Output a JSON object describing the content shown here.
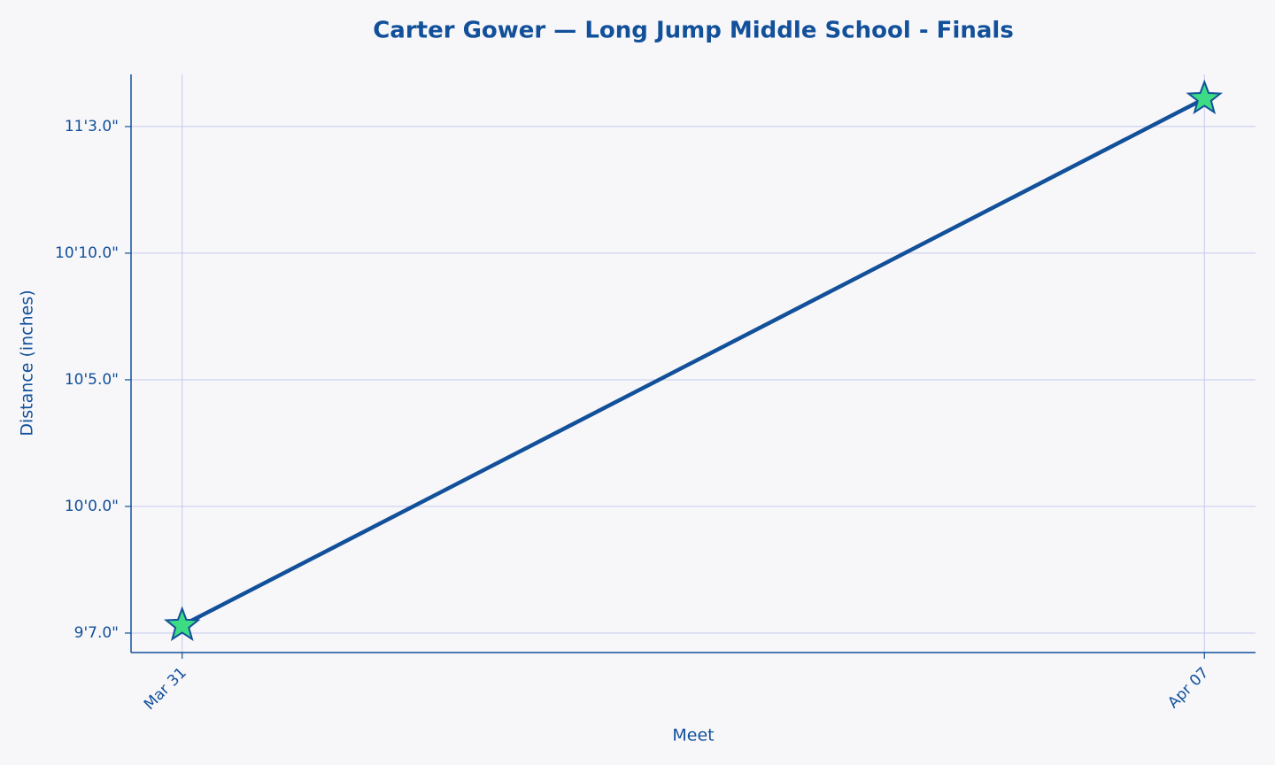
{
  "chart_data": {
    "type": "line",
    "title": "Carter Gower — Long Jump Middle School - Finals",
    "x_label": "Meet",
    "y_label": "Distance (inches)",
    "categories": [
      "Mar 31",
      "Apr 07"
    ],
    "series": [
      {
        "name": "Distance",
        "color": "#12509a",
        "marker_color": "#3ddc84",
        "values": [
          115.3,
          136.1
        ]
      }
    ],
    "ylim": [
      114.23,
      137.06
    ],
    "yticks": [
      {
        "value": 115,
        "label": "9'7.0\""
      },
      {
        "value": 120,
        "label": "10'0.0\""
      },
      {
        "value": 125,
        "label": "10'5.0\""
      },
      {
        "value": 130,
        "label": "10'10.0\""
      },
      {
        "value": 135,
        "label": "11'3.0\""
      }
    ],
    "grid": true
  }
}
